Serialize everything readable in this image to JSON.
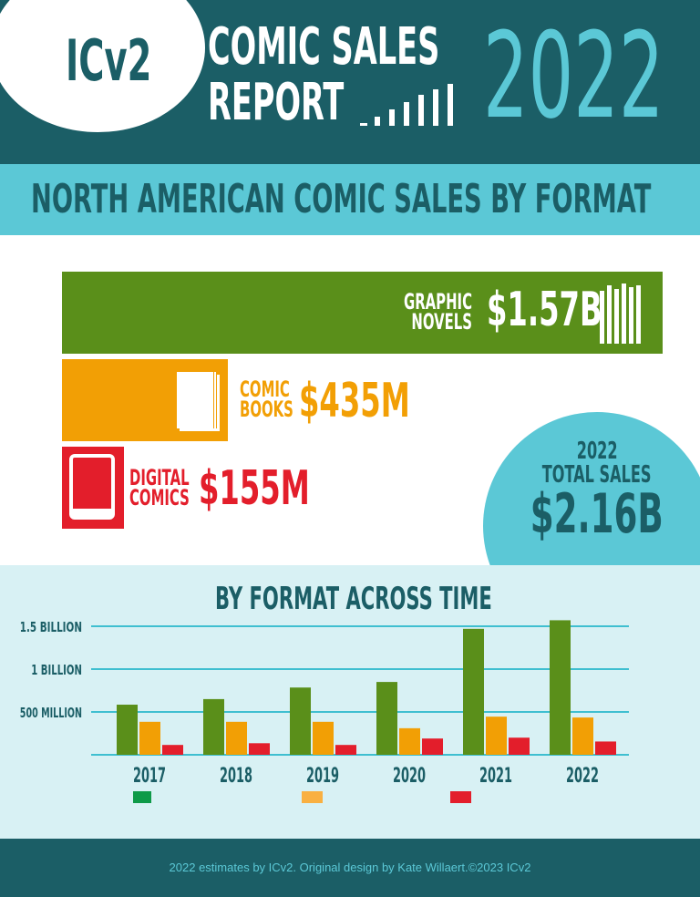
{
  "header": {
    "logo": "ICv2",
    "title_line1": "COMIC SALES",
    "title_line2": "REPORT",
    "year": "2022"
  },
  "subtitle": "NORTH AMERICAN COMIC SALES BY FORMAT",
  "formats": [
    {
      "label_line1": "GRAPHIC",
      "label_line2": "NOVELS",
      "value": "$1.57B",
      "color": "#5a8f1a",
      "icon": "books-icon"
    },
    {
      "label_line1": "COMIC",
      "label_line2": "BOOKS",
      "value": "$435M",
      "color": "#f29f05",
      "icon": "comic-book-icon"
    },
    {
      "label_line1": "DIGITAL",
      "label_line2": "COMICS",
      "value": "$155M",
      "color": "#e31e2b",
      "icon": "tablet-icon"
    }
  ],
  "total": {
    "year": "2022",
    "label": "TOTAL SALES",
    "value": "$2.16B"
  },
  "chart_data": {
    "type": "bar",
    "title": "BY FORMAT ACROSS TIME",
    "categories": [
      "2017",
      "2018",
      "2019",
      "2020",
      "2021",
      "2022"
    ],
    "series": [
      {
        "values": [
          585,
          650,
          785,
          850,
          1470,
          1570
        ],
        "color": "#5a8f1a"
      },
      {
        "values": [
          385,
          385,
          385,
          310,
          445,
          435
        ],
        "color": "#f29f05"
      },
      {
        "values": [
          115,
          135,
          115,
          190,
          200,
          155
        ],
        "color": "#e31e2b"
      }
    ],
    "ylim": [
      0,
      1500
    ],
    "yticks": [
      {
        "value": 500,
        "label": "500 MILLION"
      },
      {
        "value": 1000,
        "label": "1 BILLION"
      },
      {
        "value": 1500,
        "label": "1.5 BILLION"
      }
    ],
    "grid": true,
    "legend_colors": [
      "#0e9a48",
      "#f9b041",
      "#e31e2b"
    ],
    "legend": "bottom"
  },
  "footer": "2022 estimates by ICv2.  Original design by Kate Willaert.©2023 ICv2"
}
